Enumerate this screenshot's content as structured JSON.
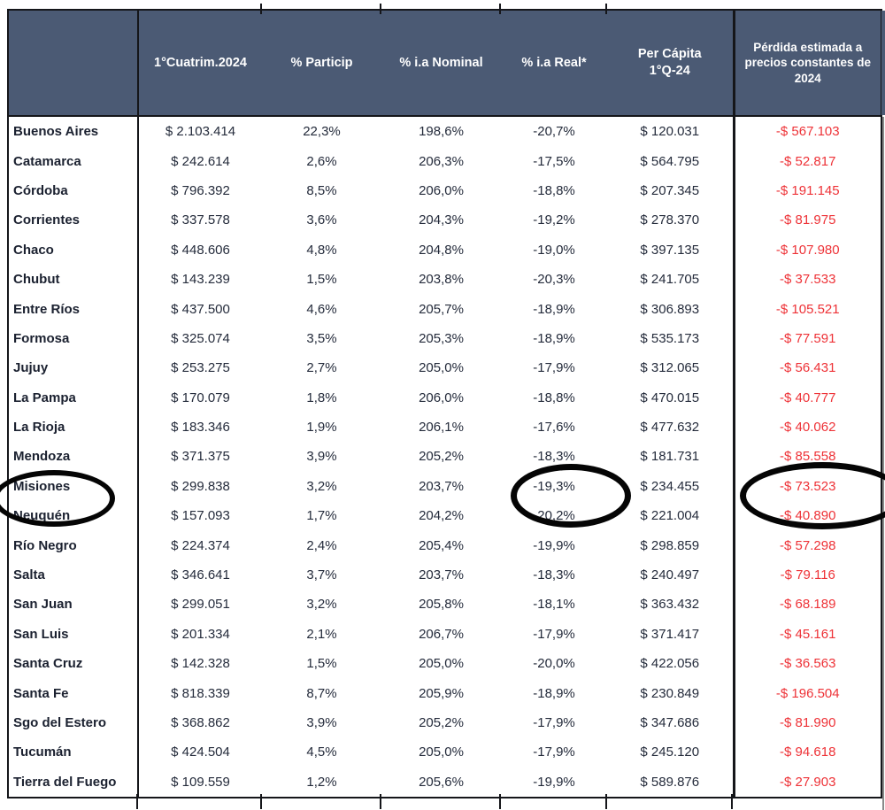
{
  "chart_data": {
    "type": "table",
    "columns": [
      "",
      "1°Cuatrim.2024",
      "% Particip",
      "% i.a Nominal",
      "% i.a Real*",
      "Per Cápita\n1°Q-24",
      "Pérdida estimada a precios constantes de 2024"
    ],
    "rows": [
      {
        "name": "Buenos Aires",
        "cuatrim": "$ 2.103.414",
        "particip": "22,3%",
        "nominal": "198,6%",
        "real": "-20,7%",
        "percap": "$ 120.031",
        "perdida": "-$ 567.103"
      },
      {
        "name": "Catamarca",
        "cuatrim": "$ 242.614",
        "particip": "2,6%",
        "nominal": "206,3%",
        "real": "-17,5%",
        "percap": "$ 564.795",
        "perdida": "-$ 52.817"
      },
      {
        "name": "Córdoba",
        "cuatrim": "$ 796.392",
        "particip": "8,5%",
        "nominal": "206,0%",
        "real": "-18,8%",
        "percap": "$ 207.345",
        "perdida": "-$ 191.145"
      },
      {
        "name": "Corrientes",
        "cuatrim": "$ 337.578",
        "particip": "3,6%",
        "nominal": "204,3%",
        "real": "-19,2%",
        "percap": "$ 278.370",
        "perdida": "-$ 81.975"
      },
      {
        "name": "Chaco",
        "cuatrim": "$ 448.606",
        "particip": "4,8%",
        "nominal": "204,8%",
        "real": "-19,0%",
        "percap": "$ 397.135",
        "perdida": "-$ 107.980"
      },
      {
        "name": "Chubut",
        "cuatrim": "$ 143.239",
        "particip": "1,5%",
        "nominal": "203,8%",
        "real": "-20,3%",
        "percap": "$ 241.705",
        "perdida": "-$ 37.533"
      },
      {
        "name": "Entre Ríos",
        "cuatrim": "$ 437.500",
        "particip": "4,6%",
        "nominal": "205,7%",
        "real": "-18,9%",
        "percap": "$ 306.893",
        "perdida": "-$ 105.521"
      },
      {
        "name": "Formosa",
        "cuatrim": "$ 325.074",
        "particip": "3,5%",
        "nominal": "205,3%",
        "real": "-18,9%",
        "percap": "$ 535.173",
        "perdida": "-$ 77.591"
      },
      {
        "name": "Jujuy",
        "cuatrim": "$ 253.275",
        "particip": "2,7%",
        "nominal": "205,0%",
        "real": "-17,9%",
        "percap": "$ 312.065",
        "perdida": "-$ 56.431"
      },
      {
        "name": "La Pampa",
        "cuatrim": "$ 170.079",
        "particip": "1,8%",
        "nominal": "206,0%",
        "real": "-18,8%",
        "percap": "$ 470.015",
        "perdida": "-$ 40.777"
      },
      {
        "name": "La Rioja",
        "cuatrim": "$ 183.346",
        "particip": "1,9%",
        "nominal": "206,1%",
        "real": "-17,6%",
        "percap": "$ 477.632",
        "perdida": "-$ 40.062"
      },
      {
        "name": "Mendoza",
        "cuatrim": "$ 371.375",
        "particip": "3,9%",
        "nominal": "205,2%",
        "real": "-18,3%",
        "percap": "$ 181.731",
        "perdida": "-$ 85.558"
      },
      {
        "name": "Misiones",
        "cuatrim": "$ 299.838",
        "particip": "3,2%",
        "nominal": "203,7%",
        "real": "-19,3%",
        "percap": "$ 234.455",
        "perdida": "-$ 73.523"
      },
      {
        "name": "Neuquén",
        "cuatrim": "$ 157.093",
        "particip": "1,7%",
        "nominal": "204,2%",
        "real": "-20,2%",
        "percap": "$ 221.004",
        "perdida": "-$ 40.890"
      },
      {
        "name": "Río Negro",
        "cuatrim": "$ 224.374",
        "particip": "2,4%",
        "nominal": "205,4%",
        "real": "-19,9%",
        "percap": "$ 298.859",
        "perdida": "-$ 57.298"
      },
      {
        "name": "Salta",
        "cuatrim": "$ 346.641",
        "particip": "3,7%",
        "nominal": "203,7%",
        "real": "-18,3%",
        "percap": "$ 240.497",
        "perdida": "-$ 79.116"
      },
      {
        "name": "San Juan",
        "cuatrim": "$ 299.051",
        "particip": "3,2%",
        "nominal": "205,8%",
        "real": "-18,1%",
        "percap": "$ 363.432",
        "perdida": "-$ 68.189"
      },
      {
        "name": "San Luis",
        "cuatrim": "$ 201.334",
        "particip": "2,1%",
        "nominal": "206,7%",
        "real": "-17,9%",
        "percap": "$ 371.417",
        "perdida": "-$ 45.161"
      },
      {
        "name": "Santa Cruz",
        "cuatrim": "$ 142.328",
        "particip": "1,5%",
        "nominal": "205,0%",
        "real": "-20,0%",
        "percap": "$ 422.056",
        "perdida": "-$ 36.563"
      },
      {
        "name": "Santa Fe",
        "cuatrim": "$ 818.339",
        "particip": "8,7%",
        "nominal": "205,9%",
        "real": "-18,9%",
        "percap": "$ 230.849",
        "perdida": "-$ 196.504"
      },
      {
        "name": "Sgo del Estero",
        "cuatrim": "$ 368.862",
        "particip": "3,9%",
        "nominal": "205,2%",
        "real": "-17,9%",
        "percap": "$ 347.686",
        "perdida": "-$ 81.990"
      },
      {
        "name": "Tucumán",
        "cuatrim": "$ 424.504",
        "particip": "4,5%",
        "nominal": "205,0%",
        "real": "-17,9%",
        "percap": "$ 245.120",
        "perdida": "-$ 94.618"
      },
      {
        "name": "Tierra del Fuego",
        "cuatrim": "$ 109.559",
        "particip": "1,2%",
        "nominal": "205,6%",
        "real": "-19,9%",
        "percap": "$ 589.876",
        "perdida": "-$ 27.903"
      }
    ],
    "annotations": [
      {
        "name": "circle-misiones-label",
        "circled_text": "Misiones"
      },
      {
        "name": "circle-misiones-real",
        "circled_text": "-19,3%"
      },
      {
        "name": "circle-misiones-perdida",
        "circled_text": "-$ 73.523"
      }
    ]
  },
  "colors": {
    "header_bg": "#4b5a74",
    "header_text": "#ffffff",
    "row_label_text": "#1b2130",
    "value_text": "#242b3b",
    "loss_red": "#ee3237",
    "border_black": "#15161a"
  }
}
